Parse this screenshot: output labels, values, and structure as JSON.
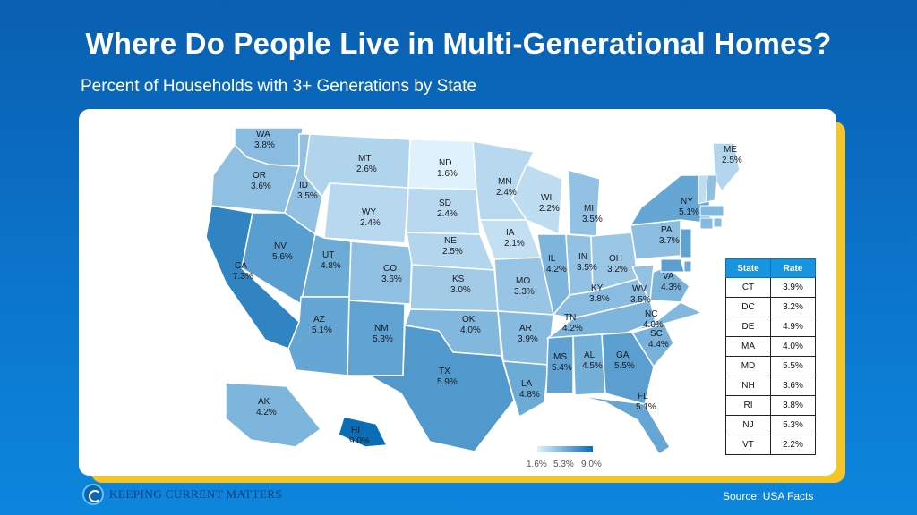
{
  "title": "Where Do People Live in Multi-Generational Homes?",
  "subtitle": "Percent of Households with 3+ Generations by State",
  "source": "Source: USA Facts",
  "logo_text": "KEEPING CURRENT MATTERS",
  "colors": {
    "background": "#0b6fc2",
    "accent": "#f3c52b",
    "scale_low": "#dff1fc",
    "scale_high": "#0a6db6",
    "table_header": "#1795e0"
  },
  "chart_data": {
    "type": "choropleth",
    "value_unit": "%",
    "legend": {
      "min": "1.6%",
      "mid": "5.3%",
      "max": "9.0%"
    },
    "states": [
      {
        "state": "WA",
        "value": 3.8
      },
      {
        "state": "OR",
        "value": 3.6
      },
      {
        "state": "CA",
        "value": 7.3
      },
      {
        "state": "ID",
        "value": 3.5
      },
      {
        "state": "NV",
        "value": 5.6
      },
      {
        "state": "MT",
        "value": 2.6
      },
      {
        "state": "WY",
        "value": 2.4
      },
      {
        "state": "UT",
        "value": 4.8
      },
      {
        "state": "AZ",
        "value": 5.1
      },
      {
        "state": "CO",
        "value": 3.6
      },
      {
        "state": "NM",
        "value": 5.3
      },
      {
        "state": "ND",
        "value": 1.6
      },
      {
        "state": "SD",
        "value": 2.4
      },
      {
        "state": "NE",
        "value": 2.5
      },
      {
        "state": "KS",
        "value": 3.0
      },
      {
        "state": "OK",
        "value": 4.0
      },
      {
        "state": "TX",
        "value": 5.9
      },
      {
        "state": "MN",
        "value": 2.4
      },
      {
        "state": "IA",
        "value": 2.1
      },
      {
        "state": "MO",
        "value": 3.3
      },
      {
        "state": "AR",
        "value": 3.9
      },
      {
        "state": "LA",
        "value": 4.8
      },
      {
        "state": "WI",
        "value": 2.2
      },
      {
        "state": "IL",
        "value": 4.2
      },
      {
        "state": "MI",
        "value": 3.5
      },
      {
        "state": "IN",
        "value": 3.5
      },
      {
        "state": "OH",
        "value": 3.2
      },
      {
        "state": "KY",
        "value": 3.8
      },
      {
        "state": "TN",
        "value": 4.2
      },
      {
        "state": "MS",
        "value": 5.4
      },
      {
        "state": "AL",
        "value": 4.5
      },
      {
        "state": "GA",
        "value": 5.5
      },
      {
        "state": "FL",
        "value": 5.1
      },
      {
        "state": "SC",
        "value": 4.4
      },
      {
        "state": "NC",
        "value": 4.0
      },
      {
        "state": "VA",
        "value": 4.3
      },
      {
        "state": "WV",
        "value": 3.5
      },
      {
        "state": "PA",
        "value": 3.7
      },
      {
        "state": "NY",
        "value": 5.1
      },
      {
        "state": "ME",
        "value": 2.5
      },
      {
        "state": "AK",
        "value": 4.2
      },
      {
        "state": "HI",
        "value": 9.0
      }
    ],
    "table": {
      "headers": [
        "State",
        "Rate"
      ],
      "rows": [
        [
          "CT",
          "3.9%"
        ],
        [
          "DC",
          "3.2%"
        ],
        [
          "DE",
          "4.9%"
        ],
        [
          "MA",
          "4.0%"
        ],
        [
          "MD",
          "5.5%"
        ],
        [
          "NH",
          "3.6%"
        ],
        [
          "RI",
          "3.8%"
        ],
        [
          "NJ",
          "5.3%"
        ],
        [
          "VT",
          "2.2%"
        ]
      ]
    }
  }
}
